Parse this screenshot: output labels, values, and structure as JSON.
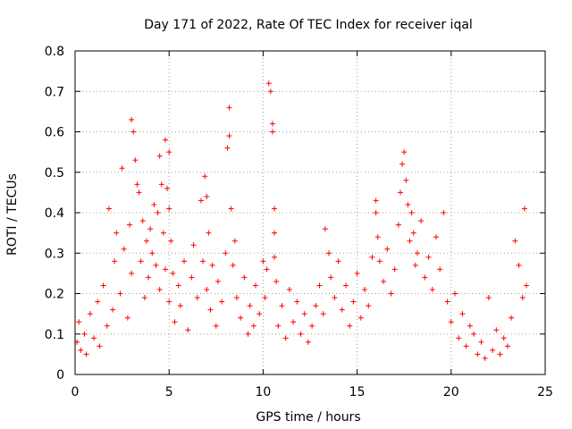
{
  "chart_data": {
    "type": "scatter",
    "title": "Day 171 of 2022, Rate Of TEC Index for receiver iqal",
    "xlabel": "GPS time / hours",
    "ylabel": "ROTI / TECUs",
    "xlim": [
      0,
      25
    ],
    "ylim": [
      0,
      0.8
    ],
    "xticks": [
      0,
      5,
      10,
      15,
      20,
      25
    ],
    "yticks": [
      0,
      0.1,
      0.2,
      0.3,
      0.4,
      0.5,
      0.6,
      0.7,
      0.8
    ],
    "xtick_labels": [
      "0",
      "5",
      "10",
      "15",
      "20",
      "25"
    ],
    "ytick_labels": [
      "0",
      "0.1",
      "0.2",
      "0.3",
      "0.4",
      "0.5",
      "0.6",
      "0.7",
      "0.8"
    ],
    "grid": true,
    "marker": "+",
    "color": "#ff0000",
    "series": [
      {
        "x": [
          0.1,
          0.2,
          0.3,
          0.5,
          0.6,
          0.8,
          1.0,
          1.2,
          1.3,
          1.5,
          1.7,
          1.8,
          2.0,
          2.1,
          2.2,
          2.4,
          2.5,
          2.6,
          2.8,
          2.9,
          3.0,
          3.0,
          3.1,
          3.2,
          3.3,
          3.4,
          3.5,
          3.6,
          3.7,
          3.8,
          3.9,
          4.0,
          4.1,
          4.2,
          4.3,
          4.4,
          4.5,
          4.5,
          4.6,
          4.7,
          4.8,
          4.8,
          4.9,
          5.0,
          5.0,
          5.0,
          5.1,
          5.2,
          5.3,
          5.5,
          5.6,
          5.8,
          6.0,
          6.2,
          6.3,
          6.5,
          6.7,
          6.8,
          6.9,
          7.0,
          7.0,
          7.1,
          7.2,
          7.3,
          7.5,
          7.6,
          7.8,
          8.0,
          8.1,
          8.2,
          8.2,
          8.3,
          8.4,
          8.5,
          8.6,
          8.8,
          9.0,
          9.2,
          9.3,
          9.5,
          9.6,
          9.8,
          10.0,
          10.1,
          10.2,
          10.3,
          10.4,
          10.5,
          10.5,
          10.6,
          10.6,
          10.6,
          10.7,
          10.8,
          11.0,
          11.2,
          11.4,
          11.6,
          11.8,
          12.0,
          12.2,
          12.4,
          12.6,
          12.8,
          13.0,
          13.2,
          13.3,
          13.5,
          13.6,
          13.8,
          14.0,
          14.2,
          14.4,
          14.6,
          14.8,
          15.0,
          15.2,
          15.4,
          15.6,
          15.8,
          16.0,
          16.0,
          16.1,
          16.2,
          16.4,
          16.6,
          16.8,
          17.0,
          17.2,
          17.3,
          17.4,
          17.5,
          17.6,
          17.7,
          17.8,
          17.9,
          18.0,
          18.1,
          18.2,
          18.4,
          18.6,
          18.8,
          19.0,
          19.2,
          19.4,
          19.6,
          19.8,
          20.0,
          20.2,
          20.4,
          20.6,
          20.8,
          21.0,
          21.2,
          21.4,
          21.6,
          21.8,
          22.0,
          22.2,
          22.4,
          22.6,
          22.8,
          23.0,
          23.2,
          23.4,
          23.6,
          23.8,
          23.9,
          24.0
        ],
        "y": [
          0.08,
          0.13,
          0.06,
          0.1,
          0.05,
          0.15,
          0.09,
          0.18,
          0.07,
          0.22,
          0.12,
          0.41,
          0.16,
          0.28,
          0.35,
          0.2,
          0.51,
          0.31,
          0.14,
          0.37,
          0.63,
          0.25,
          0.6,
          0.53,
          0.47,
          0.45,
          0.28,
          0.38,
          0.19,
          0.33,
          0.24,
          0.36,
          0.3,
          0.42,
          0.27,
          0.4,
          0.54,
          0.21,
          0.47,
          0.35,
          0.58,
          0.26,
          0.46,
          0.55,
          0.41,
          0.18,
          0.33,
          0.25,
          0.13,
          0.22,
          0.17,
          0.28,
          0.11,
          0.24,
          0.32,
          0.19,
          0.43,
          0.28,
          0.49,
          0.44,
          0.21,
          0.35,
          0.16,
          0.27,
          0.12,
          0.23,
          0.18,
          0.3,
          0.56,
          0.59,
          0.66,
          0.41,
          0.27,
          0.33,
          0.19,
          0.14,
          0.24,
          0.1,
          0.17,
          0.12,
          0.22,
          0.15,
          0.28,
          0.19,
          0.26,
          0.72,
          0.7,
          0.62,
          0.6,
          0.41,
          0.35,
          0.29,
          0.23,
          0.12,
          0.17,
          0.09,
          0.21,
          0.13,
          0.18,
          0.1,
          0.15,
          0.08,
          0.12,
          0.17,
          0.22,
          0.15,
          0.36,
          0.3,
          0.24,
          0.19,
          0.28,
          0.16,
          0.22,
          0.12,
          0.18,
          0.25,
          0.14,
          0.21,
          0.17,
          0.29,
          0.43,
          0.4,
          0.34,
          0.28,
          0.23,
          0.31,
          0.2,
          0.26,
          0.37,
          0.45,
          0.52,
          0.55,
          0.48,
          0.42,
          0.33,
          0.4,
          0.35,
          0.27,
          0.3,
          0.38,
          0.24,
          0.29,
          0.21,
          0.34,
          0.26,
          0.4,
          0.18,
          0.13,
          0.2,
          0.09,
          0.15,
          0.07,
          0.12,
          0.1,
          0.05,
          0.08,
          0.04,
          0.19,
          0.06,
          0.11,
          0.05,
          0.09,
          0.07,
          0.14,
          0.33,
          0.27,
          0.19,
          0.41,
          0.22
        ]
      }
    ]
  }
}
